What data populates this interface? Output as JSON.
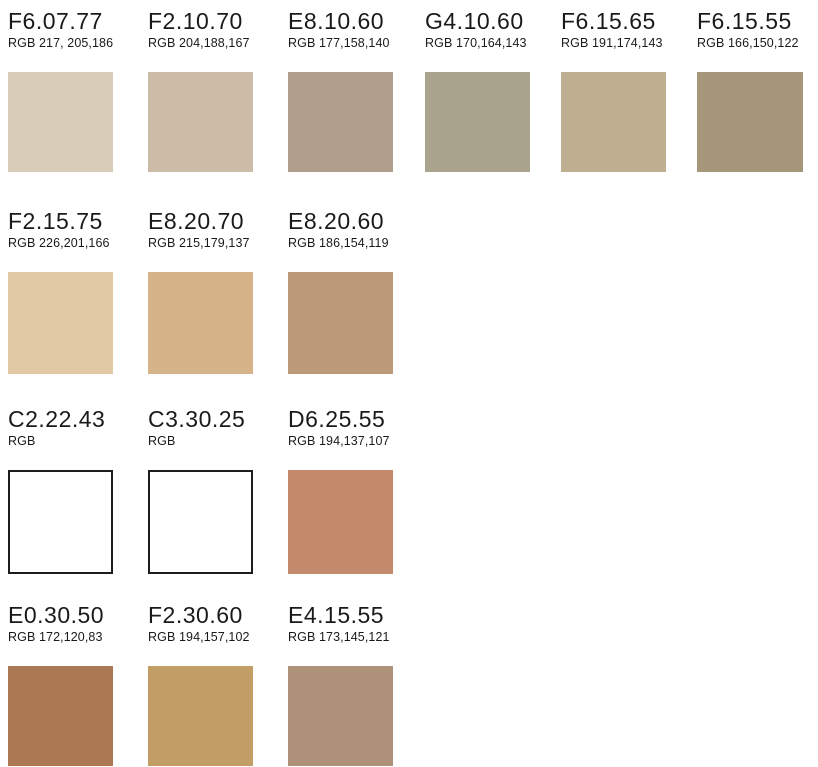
{
  "swatches": [
    {
      "code": "F6.07.77",
      "rgb_label": "RGB 217, 205,186",
      "color": "#d9cdba",
      "outlined": false
    },
    {
      "code": "F2.10.70",
      "rgb_label": "RGB 204,188,167",
      "color": "#ccbca7",
      "outlined": false
    },
    {
      "code": "E8.10.60",
      "rgb_label": "RGB 177,158,140",
      "color": "#b19e8c",
      "outlined": false
    },
    {
      "code": "G4.10.60",
      "rgb_label": "RGB 170,164,143",
      "color": "#aaa48f",
      "outlined": false
    },
    {
      "code": "F6.15.65",
      "rgb_label": "RGB 191,174,143",
      "color": "#bfae8f",
      "outlined": false
    },
    {
      "code": "F6.15.55",
      "rgb_label": "RGB 166,150,122",
      "color": "#a6967a",
      "outlined": false
    },
    {
      "code": "F2.15.75",
      "rgb_label": "RGB 226,201,166",
      "color": "#e2c9a6",
      "outlined": false
    },
    {
      "code": "E8.20.70",
      "rgb_label": "RGB 215,179,137",
      "color": "#d7b389",
      "outlined": false
    },
    {
      "code": "E8.20.60",
      "rgb_label": "RGB 186,154,119",
      "color": "#ba9a77",
      "outlined": false
    },
    {
      "code": "C2.22.43",
      "rgb_label": "RGB",
      "color": "#ffffff",
      "outlined": true
    },
    {
      "code": "C3.30.25",
      "rgb_label": "RGB",
      "color": "#ffffff",
      "outlined": true
    },
    {
      "code": "D6.25.55",
      "rgb_label": "RGB 194,137,107",
      "color": "#c2896b",
      "outlined": false
    },
    {
      "code": "E0.30.50",
      "rgb_label": "RGB 172,120,83",
      "color": "#ac7853",
      "outlined": false
    },
    {
      "code": "F2.30.60",
      "rgb_label": "RGB 194,157,102",
      "color": "#c29d66",
      "outlined": false
    },
    {
      "code": "E4.15.55",
      "rgb_label": "RGB 173,145,121",
      "color": "#ad9179",
      "outlined": false
    }
  ]
}
